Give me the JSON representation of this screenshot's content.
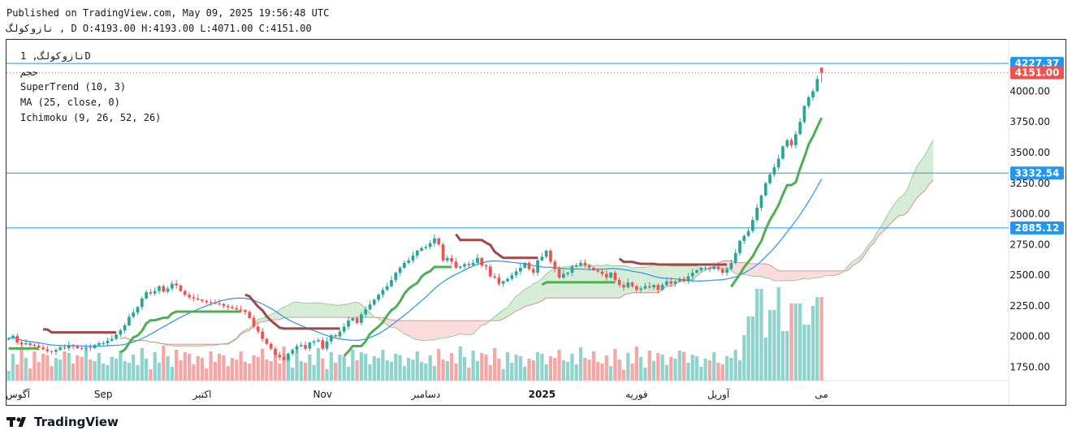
{
  "header": {
    "published": "Published on TradingView.com, May 09, 2025 19:56:48 UTC",
    "ohlc_line": "نازوكولگ , D O:4193.00 H:4193.00 L:4071.00 C:4151.00"
  },
  "legend": {
    "symbol": "نازوكولگ, 1D",
    "volume_label": "حجم",
    "supertrend": "SuperTrend (10, 3)",
    "ma": "MA (25, close, 0)",
    "ichimoku": "Ichimoku (9, 26, 52, 26)"
  },
  "brand": {
    "name": "TradingView",
    "icon": "tradingview-logo-icon"
  },
  "colors": {
    "up": "#26a69a",
    "down": "#ef5350",
    "supertrend_up": "#4caf50",
    "supertrend_down": "#a04848",
    "ma": "#2196f3",
    "hline": "#2196f3",
    "cloud_bull": "#c8e6c9",
    "cloud_bear": "#f8d0d0",
    "vol_up": "#8fd3cc",
    "vol_down": "#f4a7a5"
  },
  "chart_data": {
    "type": "candlestick",
    "y_ticks": [
      1750,
      2000,
      2250,
      2500,
      2750,
      3000,
      3250,
      3500,
      3750,
      4000
    ],
    "y_tick_labels": [
      "1750.00",
      "2000.00",
      "2250.00",
      "2500.00",
      "2750.00",
      "3000.00",
      "3250.00",
      "3500.00",
      "3750.00",
      "4000.00"
    ],
    "y_range": [
      1640,
      4420
    ],
    "x_labels": [
      {
        "i": 0,
        "text": "آگوس"
      },
      {
        "i": 22,
        "text": "Sep"
      },
      {
        "i": 45,
        "text": "اكتبر"
      },
      {
        "i": 73,
        "text": "Nov"
      },
      {
        "i": 97,
        "text": "دسامبر"
      },
      {
        "i": 124,
        "text": "2025"
      },
      {
        "i": 146,
        "text": "فوریه"
      },
      {
        "i": 165,
        "text": "آوریل"
      },
      {
        "i": 189,
        "text": "می"
      }
    ],
    "horizontal_lines": [
      {
        "value": 4227.37,
        "label": "4227.37"
      },
      {
        "value": 3332.54,
        "label": "3332.54"
      },
      {
        "value": 2885.12,
        "label": "2885.12"
      }
    ],
    "last_price": {
      "value": 4151.0,
      "label": "4151.00"
    },
    "last_bar": {
      "open": 4193.0,
      "high": 4193.0,
      "low": 4071.0,
      "close": 4151.0
    },
    "closes": [
      1985,
      2005,
      1950,
      1935,
      1945,
      1930,
      1925,
      1910,
      1895,
      1880,
      1875,
      1890,
      1910,
      1905,
      1930,
      1920,
      1905,
      1900,
      1910,
      1905,
      1930,
      1945,
      1945,
      1965,
      1980,
      2015,
      2050,
      2090,
      2160,
      2195,
      2240,
      2310,
      2360,
      2350,
      2370,
      2410,
      2365,
      2390,
      2430,
      2415,
      2370,
      2340,
      2320,
      2310,
      2300,
      2290,
      2280,
      2275,
      2270,
      2265,
      2250,
      2240,
      2230,
      2220,
      2215,
      2200,
      2150,
      2080,
      2040,
      1980,
      1940,
      1900,
      1850,
      1830,
      1810,
      1860,
      1890,
      1920,
      1930,
      1900,
      1950,
      1960,
      1970,
      1900,
      1960,
      2010,
      2000,
      2040,
      2080,
      2130,
      2150,
      2110,
      2180,
      2220,
      2260,
      2300,
      2340,
      2380,
      2410,
      2460,
      2520,
      2560,
      2600,
      2620,
      2660,
      2700,
      2720,
      2730,
      2760,
      2800,
      2750,
      2620,
      2640,
      2610,
      2560,
      2570,
      2590,
      2580,
      2600,
      2640,
      2580,
      2570,
      2490,
      2480,
      2430,
      2450,
      2470,
      2500,
      2530,
      2560,
      2600,
      2550,
      2520,
      2620,
      2650,
      2700,
      2610,
      2550,
      2480,
      2510,
      2520,
      2570,
      2580,
      2600,
      2580,
      2560,
      2540,
      2530,
      2510,
      2480,
      2520,
      2460,
      2420,
      2400,
      2440,
      2410,
      2380,
      2390,
      2410,
      2400,
      2420,
      2380,
      2420,
      2450,
      2430,
      2450,
      2470,
      2450,
      2490,
      2520,
      2540,
      2560,
      2560,
      2550,
      2570,
      2550,
      2520,
      2550,
      2600,
      2680,
      2780,
      2820,
      2860,
      2950,
      3050,
      3150,
      3250,
      3320,
      3380,
      3450,
      3550,
      3600,
      3560,
      3650,
      3750,
      3880,
      3950,
      4000,
      4100,
      4151
    ]
  }
}
